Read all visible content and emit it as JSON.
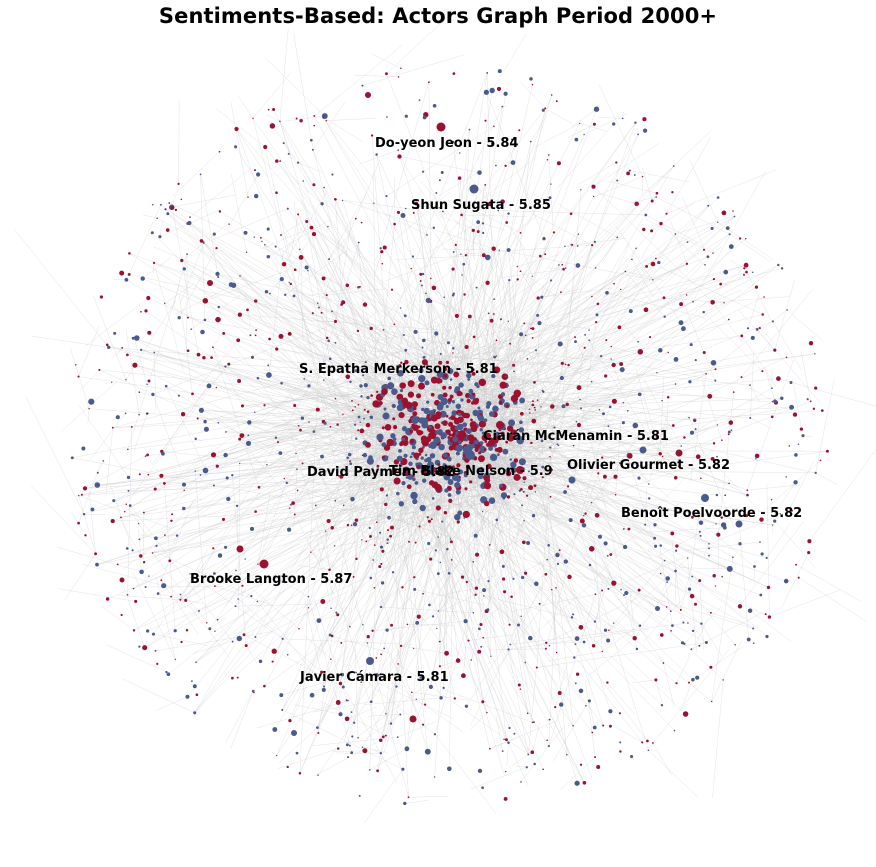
{
  "title": "Sentiments-Based: Actors Graph Period 2000+",
  "colors": {
    "positive": "#9b1230",
    "negative": "#4a5a8c",
    "edge": "#c9c9c9",
    "label": "#000000"
  },
  "labels": [
    {
      "id": "do-yeon-jeon",
      "text": "Do-yeon Jeon - 5.84"
    },
    {
      "id": "shun-sugata",
      "text": "Shun Sugata - 5.85"
    },
    {
      "id": "s-epatha-merkerson",
      "text": "S. Epatha Merkerson - 5.81"
    },
    {
      "id": "ciaran-mcmenamin",
      "text": "Ciarán McMenamin - 5.81"
    },
    {
      "id": "olivier-gourmet",
      "text": "Olivier Gourmet - 5.82"
    },
    {
      "id": "david-paymer",
      "text": "David Paymer - 5.82"
    },
    {
      "id": "tim-blake-nelson",
      "text": "Tim Blake Nelson - 5.9"
    },
    {
      "id": "benoit-poelvoorde",
      "text": "Benoît Poelvoorde - 5.82"
    },
    {
      "id": "brooke-langton",
      "text": "Brooke Langton - 5.87"
    },
    {
      "id": "javier-camara",
      "text": "Javier Cámara - 5.81"
    }
  ]
}
